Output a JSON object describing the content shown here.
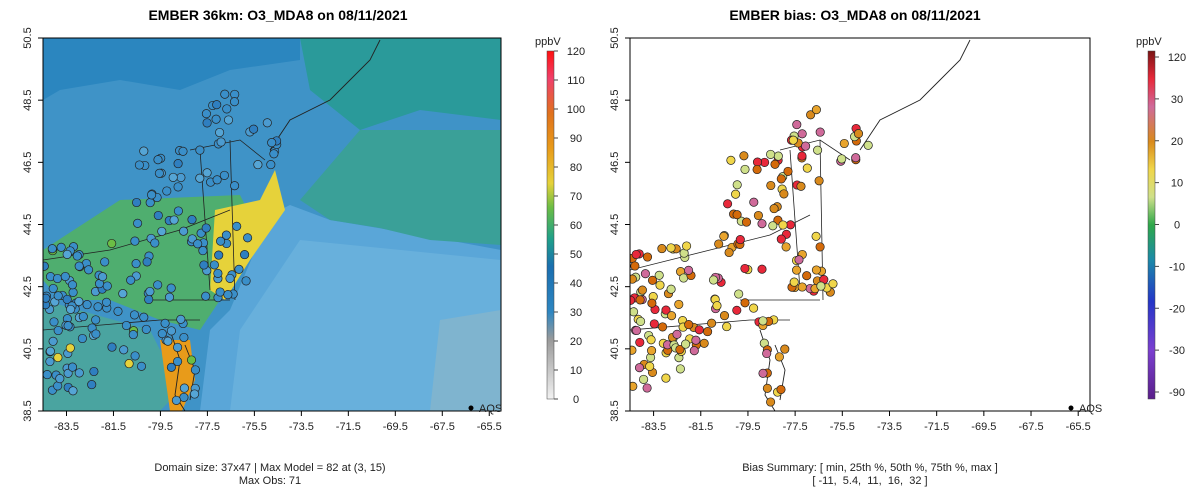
{
  "chart_data": [
    {
      "type": "heatmap",
      "title": "EMBER 36km: O3_MDA8 on 08/11/2021",
      "x_ticks": [
        "-83.5",
        "-81.5",
        "-79.5",
        "-77.5",
        "-75.5",
        "-73.5",
        "-71.5",
        "-69.5",
        "-67.5",
        "-65.5"
      ],
      "y_ticks": [
        "38.5",
        "40.5",
        "42.5",
        "44.5",
        "46.5",
        "48.5",
        "50.5"
      ],
      "xlim": [
        -84.5,
        -65.0
      ],
      "ylim": [
        38.5,
        50.5
      ],
      "colorbar": {
        "label": "ppbV",
        "ticks": [
          "0",
          "10",
          "20",
          "30",
          "40",
          "50",
          "60",
          "70",
          "80",
          "90",
          "100",
          "110",
          "120"
        ],
        "range": [
          0,
          120
        ]
      },
      "legend": "AQS",
      "footer_line1": "Domain size: 37x47 | Max Model = 82 at (3, 15)",
      "footer_line2": "Max Obs: 71",
      "domain_cols": 37,
      "domain_rows": 47,
      "max_model": 82,
      "max_obs": 71
    },
    {
      "type": "scatter",
      "title": "EMBER bias: O3_MDA8 on 08/11/2021",
      "x_ticks": [
        "-83.5",
        "-81.5",
        "-79.5",
        "-77.5",
        "-75.5",
        "-73.5",
        "-71.5",
        "-69.5",
        "-67.5",
        "-65.5"
      ],
      "y_ticks": [
        "38.5",
        "40.5",
        "42.5",
        "44.5",
        "46.5",
        "48.5",
        "50.5"
      ],
      "xlim": [
        -84.5,
        -65.0
      ],
      "ylim": [
        38.5,
        50.5
      ],
      "colorbar": {
        "label": "ppbV",
        "ticks": [
          "120",
          "30",
          "20",
          "10",
          "0",
          "-10",
          "-20",
          "-30",
          "-90"
        ],
        "range": [
          -90,
          120
        ]
      },
      "legend": "AQS",
      "footer_line1": "Bias Summary: [ min, 25th %, 50th %, 75th %, max ]",
      "footer_line2": "[ -11,  5.4,  11,  16,  32 ]",
      "bias_summary": {
        "min": -11,
        "p25": 5.4,
        "p50": 11,
        "p75": 16,
        "max": 32
      }
    }
  ],
  "colors": {
    "ocean_model": "#5aa6d8",
    "land_model": "#3a8cc0",
    "bias_pos": "#d46a0a",
    "bias_mid": "#e8c33a"
  }
}
